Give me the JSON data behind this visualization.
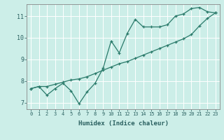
{
  "xlabel": "Humidex (Indice chaleur)",
  "background_color": "#cceee8",
  "line_color": "#2a7a6a",
  "grid_color": "#ffffff",
  "xlim": [
    -0.5,
    23.5
  ],
  "ylim": [
    6.7,
    11.55
  ],
  "xticks": [
    0,
    1,
    2,
    3,
    4,
    5,
    6,
    7,
    8,
    9,
    10,
    11,
    12,
    13,
    14,
    15,
    16,
    17,
    18,
    19,
    20,
    21,
    22,
    23
  ],
  "yticks": [
    7,
    8,
    9,
    10,
    11
  ],
  "line1_x": [
    0,
    1,
    2,
    3,
    4,
    5,
    6,
    7,
    8,
    9,
    10,
    11,
    12,
    13,
    14,
    15,
    16,
    17,
    18,
    19,
    20,
    21,
    22,
    23
  ],
  "line1_y": [
    7.65,
    7.75,
    7.35,
    7.65,
    7.9,
    7.55,
    6.95,
    7.5,
    7.9,
    8.6,
    9.85,
    9.3,
    10.2,
    10.85,
    10.5,
    10.5,
    10.5,
    10.6,
    11.0,
    11.1,
    11.35,
    11.4,
    11.2,
    11.15
  ],
  "line2_x": [
    0,
    1,
    2,
    3,
    4,
    5,
    6,
    7,
    8,
    9,
    10,
    11,
    12,
    13,
    14,
    15,
    16,
    17,
    18,
    19,
    20,
    21,
    22,
    23
  ],
  "line2_y": [
    7.65,
    7.75,
    7.75,
    7.85,
    7.95,
    8.05,
    8.1,
    8.2,
    8.35,
    8.5,
    8.65,
    8.8,
    8.9,
    9.05,
    9.2,
    9.35,
    9.5,
    9.65,
    9.8,
    9.95,
    10.15,
    10.55,
    10.9,
    11.15
  ],
  "tick_fontsize": 5.0,
  "xlabel_fontsize": 6.5,
  "ytick_fontsize": 6.0
}
